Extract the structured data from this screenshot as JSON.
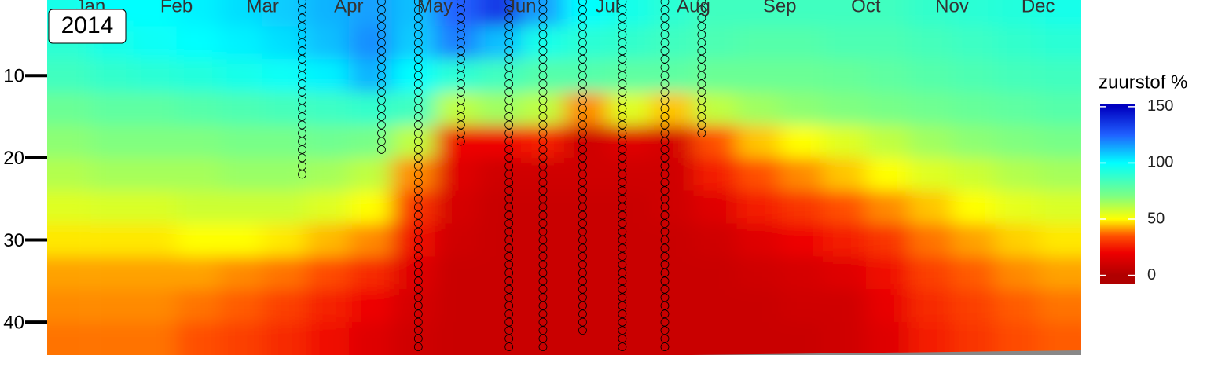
{
  "chart_data": {
    "type": "heatmap",
    "year_label": "2014",
    "categories": [
      "Jan",
      "Feb",
      "Mar",
      "Apr",
      "May",
      "Jun",
      "Jul",
      "Aug",
      "Sep",
      "Oct",
      "Nov",
      "Dec"
    ],
    "xlim": [
      0,
      365
    ],
    "ylim": [
      0.8,
      44
    ],
    "yticks": [
      10,
      20,
      30,
      40
    ],
    "depths": [
      2,
      6,
      10,
      14,
      18,
      22,
      26,
      30,
      34,
      38,
      42
    ],
    "z": [
      [
        95,
        90,
        85,
        75,
        68,
        62,
        55,
        48,
        42,
        40,
        38
      ],
      [
        100,
        95,
        88,
        78,
        70,
        64,
        56,
        48,
        42,
        40,
        38
      ],
      [
        100,
        98,
        90,
        78,
        70,
        64,
        56,
        48,
        42,
        40,
        38
      ],
      [
        102,
        100,
        92,
        80,
        70,
        64,
        58,
        50,
        42,
        38,
        35
      ],
      [
        105,
        102,
        95,
        82,
        72,
        66,
        58,
        50,
        40,
        36,
        32
      ],
      [
        108,
        105,
        98,
        84,
        72,
        66,
        58,
        48,
        38,
        32,
        28
      ],
      [
        112,
        110,
        102,
        86,
        74,
        64,
        55,
        44,
        34,
        26,
        22
      ],
      [
        115,
        118,
        112,
        88,
        72,
        60,
        50,
        40,
        28,
        20,
        15
      ],
      [
        110,
        108,
        100,
        85,
        60,
        40,
        30,
        22,
        15,
        12,
        10
      ],
      [
        125,
        120,
        90,
        60,
        20,
        15,
        12,
        10,
        8,
        8,
        8
      ],
      [
        135,
        110,
        85,
        65,
        20,
        10,
        8,
        8,
        8,
        8,
        8
      ],
      [
        115,
        95,
        80,
        60,
        25,
        10,
        8,
        8,
        8,
        8,
        8
      ],
      [
        100,
        90,
        80,
        40,
        10,
        10,
        8,
        8,
        8,
        8,
        8
      ],
      [
        95,
        88,
        78,
        55,
        15,
        10,
        8,
        8,
        8,
        8,
        8
      ],
      [
        90,
        85,
        78,
        45,
        12,
        10,
        10,
        8,
        8,
        8,
        8
      ],
      [
        85,
        82,
        75,
        60,
        35,
        25,
        15,
        10,
        8,
        8,
        8
      ],
      [
        85,
        80,
        75,
        65,
        45,
        35,
        25,
        15,
        10,
        8,
        8
      ],
      [
        85,
        80,
        75,
        68,
        50,
        40,
        30,
        20,
        12,
        10,
        8
      ],
      [
        85,
        82,
        76,
        70,
        55,
        45,
        35,
        25,
        15,
        10,
        10
      ],
      [
        85,
        82,
        78,
        72,
        60,
        50,
        40,
        30,
        22,
        18,
        15
      ],
      [
        88,
        84,
        80,
        74,
        65,
        55,
        45,
        38,
        32,
        28,
        25
      ],
      [
        90,
        86,
        82,
        76,
        68,
        58,
        50,
        42,
        36,
        32,
        30
      ],
      [
        92,
        88,
        84,
        78,
        70,
        62,
        54,
        46,
        40,
        36,
        34
      ],
      [
        95,
        90,
        85,
        80,
        72,
        64,
        56,
        48,
        42,
        38,
        36
      ]
    ],
    "profiles": [
      {
        "day": 90,
        "max_depth": 22
      },
      {
        "day": 118,
        "max_depth": 19
      },
      {
        "day": 131,
        "max_depth": 43
      },
      {
        "day": 146,
        "max_depth": 18
      },
      {
        "day": 163,
        "max_depth": 43
      },
      {
        "day": 175,
        "max_depth": 43
      },
      {
        "day": 189,
        "max_depth": 41
      },
      {
        "day": 203,
        "max_depth": 43
      },
      {
        "day": 218,
        "max_depth": 43
      },
      {
        "day": 231,
        "max_depth": 17
      }
    ],
    "legend_title": "zuurstof %",
    "clim": [
      -8,
      152
    ],
    "cticks": [
      0,
      50,
      100,
      150
    ],
    "colorscale": [
      [
        0,
        "#b00000"
      ],
      [
        20,
        "#ee0000"
      ],
      [
        35,
        "#ff5000"
      ],
      [
        50,
        "#ffff00"
      ],
      [
        70,
        "#80ff80"
      ],
      [
        100,
        "#00ffff"
      ],
      [
        125,
        "#2060ff"
      ],
      [
        150,
        "#0000c0"
      ]
    ]
  }
}
